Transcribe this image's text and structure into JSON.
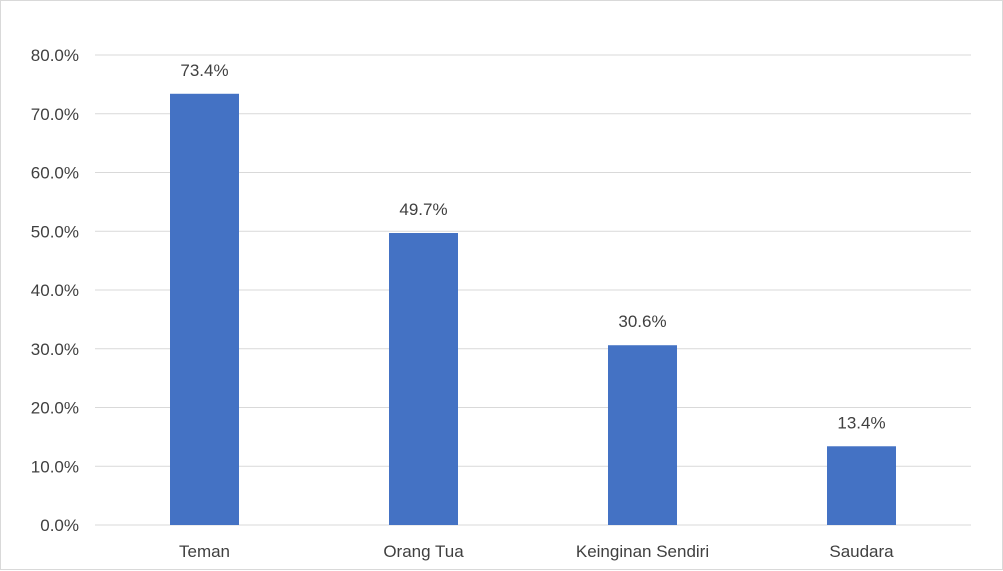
{
  "chart_data": {
    "type": "bar",
    "title": "",
    "xlabel": "",
    "ylabel": "",
    "categories": [
      "Teman",
      "Orang Tua",
      "Keinginan Sendiri",
      "Saudara"
    ],
    "values": [
      73.4,
      49.7,
      30.6,
      13.4
    ],
    "data_labels": [
      "73.4%",
      "49.7%",
      "30.6%",
      "13.4%"
    ],
    "ylim": [
      0,
      80
    ],
    "yticks": [
      0,
      10,
      20,
      30,
      40,
      50,
      60,
      70,
      80
    ],
    "ytick_labels": [
      "0.0%",
      "10.0%",
      "20.0%",
      "30.0%",
      "40.0%",
      "50.0%",
      "60.0%",
      "70.0%",
      "80.0%"
    ],
    "grid": true,
    "legend": "none",
    "bar_color": "#4472C4",
    "grid_color": "#d9d9d9"
  }
}
